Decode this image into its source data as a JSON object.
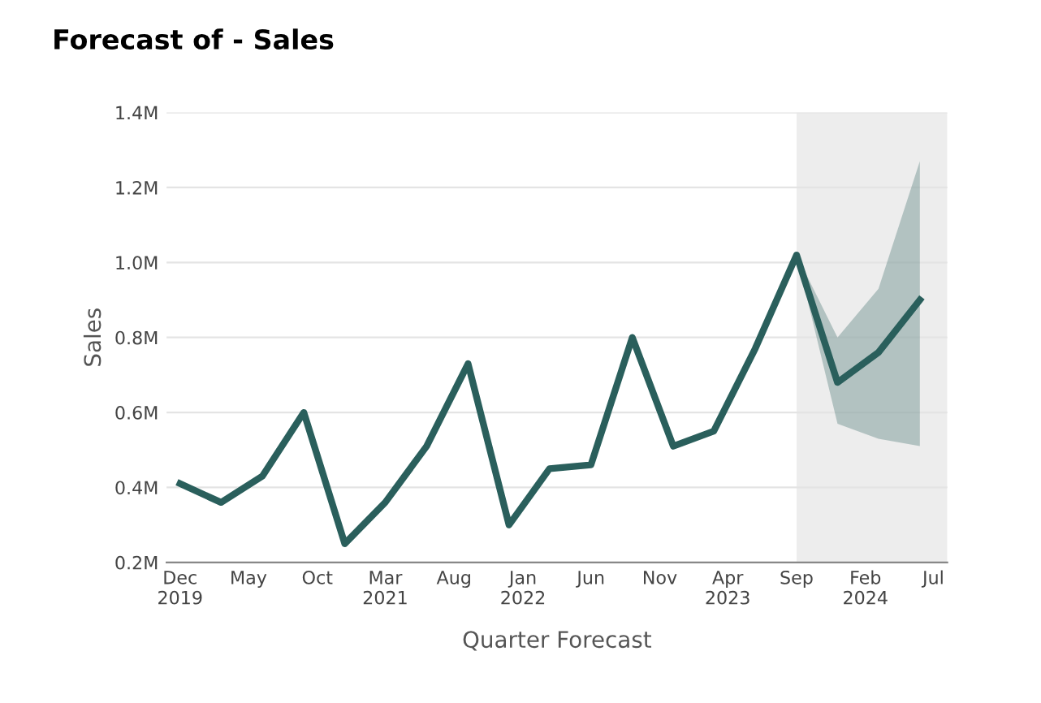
{
  "chart_data": {
    "type": "line",
    "title": "Forecast of - Sales",
    "xlabel": "Quarter Forecast",
    "ylabel": "Sales",
    "x": [
      "2019-12",
      "2020-03",
      "2020-06",
      "2020-09",
      "2020-12",
      "2021-03",
      "2021-06",
      "2021-09",
      "2021-12",
      "2022-03",
      "2022-06",
      "2022-09",
      "2022-12",
      "2023-03",
      "2023-06",
      "2023-09",
      "2023-12",
      "2024-03",
      "2024-06"
    ],
    "series": [
      {
        "color": "#2a5f5c",
        "values": [
          410000,
          360000,
          430000,
          600000,
          250000,
          360000,
          510000,
          730000,
          300000,
          450000,
          460000,
          800000,
          510000,
          550000,
          770000,
          1020000,
          680000,
          760000,
          900000
        ],
        "lower": [
          null,
          null,
          null,
          null,
          null,
          null,
          null,
          null,
          null,
          null,
          null,
          null,
          null,
          null,
          null,
          1020000,
          570000,
          530000,
          510000
        ],
        "upper": [
          null,
          null,
          null,
          null,
          null,
          null,
          null,
          null,
          null,
          null,
          null,
          null,
          null,
          null,
          null,
          1020000,
          800000,
          930000,
          1270000
        ]
      }
    ],
    "bands": [
      {
        "axis": "x",
        "from": "2023-09",
        "to": "2024-08",
        "color": "#ededed"
      }
    ],
    "xlim": [
      "2019-11",
      "2024-08"
    ],
    "xticks": [
      {
        "value": "2019-12",
        "label": "Dec\n2019"
      },
      {
        "value": "2020-05",
        "label": "May"
      },
      {
        "value": "2020-10",
        "label": "Oct"
      },
      {
        "value": "2021-03",
        "label": "Mar\n2021"
      },
      {
        "value": "2021-08",
        "label": "Aug"
      },
      {
        "value": "2022-01",
        "label": "Jan\n2022"
      },
      {
        "value": "2022-06",
        "label": "Jun"
      },
      {
        "value": "2022-11",
        "label": "Nov"
      },
      {
        "value": "2023-04",
        "label": "Apr\n2023"
      },
      {
        "value": "2023-09",
        "label": "Sep"
      },
      {
        "value": "2024-02",
        "label": "Feb\n2024"
      },
      {
        "value": "2024-07",
        "label": "Jul"
      }
    ],
    "ylim": [
      200000,
      1400000
    ],
    "yticks": [
      {
        "value": 200000,
        "label": "0.2M"
      },
      {
        "value": 400000,
        "label": "0.4M"
      },
      {
        "value": 600000,
        "label": "0.6M"
      },
      {
        "value": 800000,
        "label": "0.8M"
      },
      {
        "value": 1000000,
        "label": "1.0M"
      },
      {
        "value": 1200000,
        "label": "1.2M"
      },
      {
        "value": 1400000,
        "label": "1.4M"
      }
    ],
    "grid": "y",
    "marker": "none",
    "line_style": "solid"
  }
}
